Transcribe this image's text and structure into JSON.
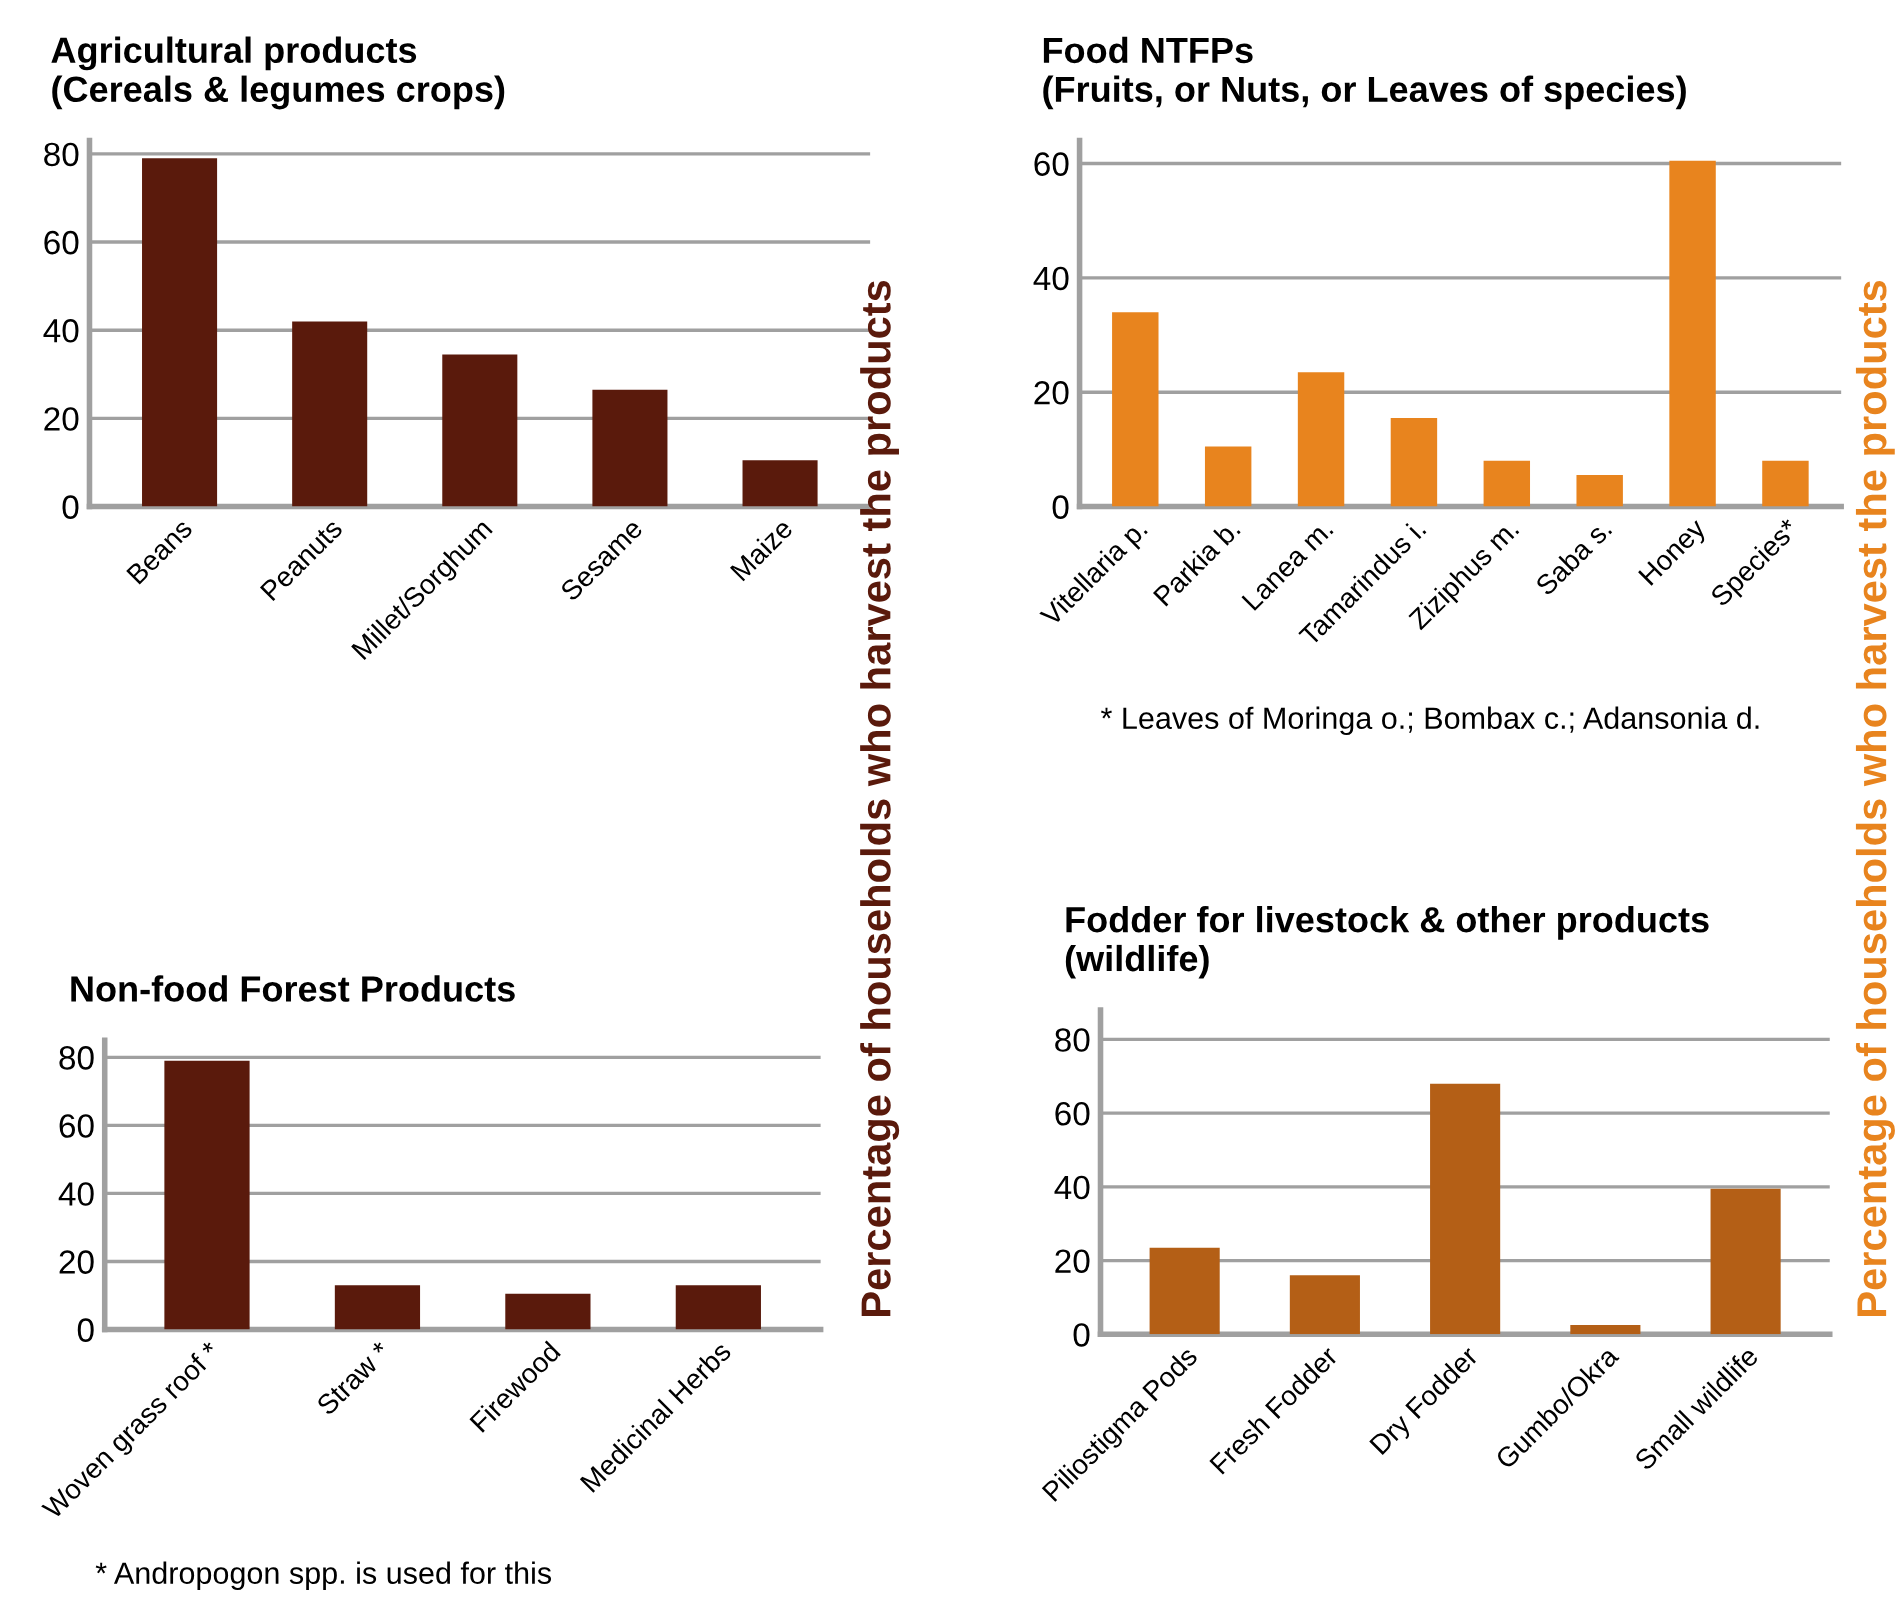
{
  "chart_data": [
    {
      "type": "bar",
      "title": "Agricultural products\n(Cereals & legumes crops)",
      "ylabel": "Percentage of households who harvest the products",
      "categories": [
        "Beans",
        "Peanuts",
        "Millet/Sorghum",
        "Sesame",
        "Maize"
      ],
      "series": [
        {
          "color": "#5a1a0c",
          "values": [
            79,
            42,
            34.5,
            26.5,
            10.5
          ]
        }
      ],
      "ylim": [
        0,
        83
      ],
      "yticks": [
        0,
        20,
        40,
        60,
        80
      ],
      "grid": "y"
    },
    {
      "type": "bar",
      "title": "Food NTFPs\n(Fruits, or Nuts, or Leaves of species)",
      "ylabel": "Percentage of households who harvest the products",
      "categories": [
        "Vitellaria p.",
        "Parkia b.",
        "Lanea m.",
        "Tamarindus i.",
        "Ziziphus m.",
        "Saba s.",
        "Honey",
        "Species*"
      ],
      "series": [
        {
          "color": "#e8841e",
          "values": [
            34,
            10.5,
            23.5,
            15.5,
            8,
            5.5,
            60.5,
            8
          ]
        }
      ],
      "ylim": [
        0,
        64
      ],
      "yticks": [
        0,
        20,
        40,
        60
      ],
      "grid": "y",
      "annotations": [
        "* Leaves of Moringa o.; Bombax c.; Adansonia d."
      ]
    },
    {
      "type": "bar",
      "title": "Non-food Forest Products",
      "categories": [
        "Woven grass roof *",
        "Straw *",
        "Firewood",
        "Medicinal Herbs"
      ],
      "series": [
        {
          "color": "#5a1a0c",
          "values": [
            79,
            13,
            10.5,
            13
          ]
        }
      ],
      "ylim": [
        0,
        85
      ],
      "yticks": [
        0,
        20,
        40,
        60,
        80
      ],
      "grid": "y",
      "annotations": [
        "* Andropogon spp. is used for this"
      ]
    },
    {
      "type": "bar",
      "title": "Fodder for livestock & other products\n(wildlife)",
      "categories": [
        "Piliostigma Pods",
        "Fresh Fodder",
        "Dry Fodder",
        "Gumbo/Okra",
        "Small wildlife"
      ],
      "series": [
        {
          "color": "#b45f16",
          "values": [
            23.5,
            16,
            68,
            2.5,
            39.5
          ]
        }
      ],
      "ylim": [
        0,
        88
      ],
      "yticks": [
        0,
        20,
        40,
        60,
        80
      ],
      "grid": "y"
    }
  ]
}
